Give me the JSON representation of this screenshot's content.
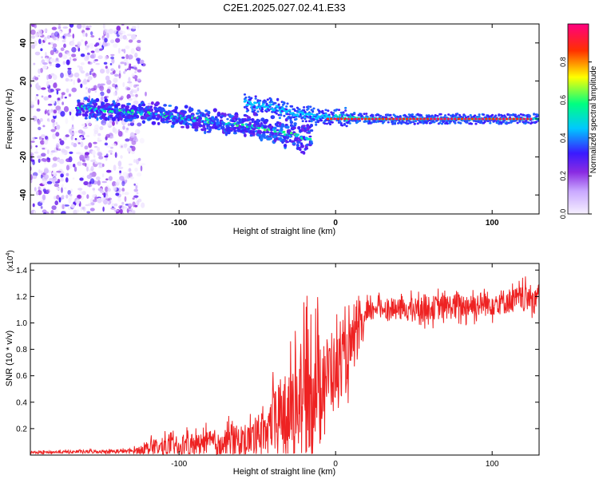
{
  "page": {
    "title": "C2E1.2025.027.02.41.E33"
  },
  "chart_data": [
    {
      "id": "spectrogram",
      "type": "heatmap",
      "title": "C2E1.2025.027.02.41.E33",
      "xlabel": "Height of straight line (km)",
      "ylabel": "Frequency (Hz)",
      "xlim": [
        -195,
        130
      ],
      "ylim": [
        -50,
        50
      ],
      "xticks": [
        -100,
        0,
        100
      ],
      "yticks": [
        -40,
        -20,
        0,
        20,
        40
      ],
      "colorbar": {
        "label": "Normalized spectral amplitude",
        "range": [
          0,
          1
        ],
        "ticks": [
          "0.0",
          "0.2",
          "0.4",
          "0.6",
          "0.8"
        ],
        "tick_values": [
          0.0,
          0.2,
          0.4,
          0.6,
          0.8
        ],
        "colors": [
          "#f6f0ff",
          "#8a2be2",
          "#3a1aff",
          "#00c8ff",
          "#00ff80",
          "#ffff00",
          "#ff3000",
          "#ff0080"
        ]
      },
      "tone_track": [
        {
          "x": -160,
          "y": 6
        },
        {
          "x": -140,
          "y": 4
        },
        {
          "x": -120,
          "y": 3
        },
        {
          "x": -100,
          "y": 1
        },
        {
          "x": -80,
          "y": -1
        },
        {
          "x": -60,
          "y": -3
        },
        {
          "x": -40,
          "y": -6
        },
        {
          "x": -20,
          "y": -10
        }
      ],
      "branch_track": [
        {
          "x": -55,
          "y": 8
        },
        {
          "x": -40,
          "y": 6
        },
        {
          "x": -20,
          "y": 2
        },
        {
          "x": 0,
          "y": 1
        },
        {
          "x": 30,
          "y": 0
        },
        {
          "x": 130,
          "y": 0
        }
      ],
      "noise_region": {
        "x_from": -195,
        "x_to": -125
      }
    },
    {
      "id": "snr",
      "type": "line",
      "xlabel": "Height of straight line (km)",
      "ylabel": "SNR (10 * v/v)",
      "yscale_label": "(x10",
      "yscale_exp": "4",
      "xlim": [
        -195,
        130
      ],
      "ylim": [
        0,
        1.45
      ],
      "xticks": [
        -100,
        0,
        100
      ],
      "yticks": [
        0.2,
        0.4,
        0.6,
        0.8,
        1.0,
        1.2,
        1.4
      ],
      "ytick_labels": [
        "0.2",
        "0.4",
        "0.6",
        "0.8",
        "1.0",
        "1.2",
        "1.4"
      ],
      "line_color": "#ee2222",
      "envelope": {
        "x": [
          -195,
          -130,
          -115,
          -90,
          -70,
          -55,
          -45,
          -35,
          -25,
          -18,
          -12,
          -5,
          5,
          12,
          20,
          25,
          40,
          70,
          100,
          130
        ],
        "base": [
          0.02,
          0.03,
          0.06,
          0.08,
          0.1,
          0.12,
          0.2,
          0.3,
          0.4,
          0.45,
          0.55,
          0.62,
          0.7,
          0.85,
          1.05,
          1.12,
          1.1,
          1.12,
          1.15,
          1.2
        ],
        "spread": [
          0.01,
          0.02,
          0.08,
          0.1,
          0.14,
          0.15,
          0.2,
          0.35,
          0.5,
          0.55,
          0.5,
          0.35,
          0.3,
          0.25,
          0.12,
          0.08,
          0.1,
          0.12,
          0.12,
          0.12
        ]
      }
    }
  ]
}
